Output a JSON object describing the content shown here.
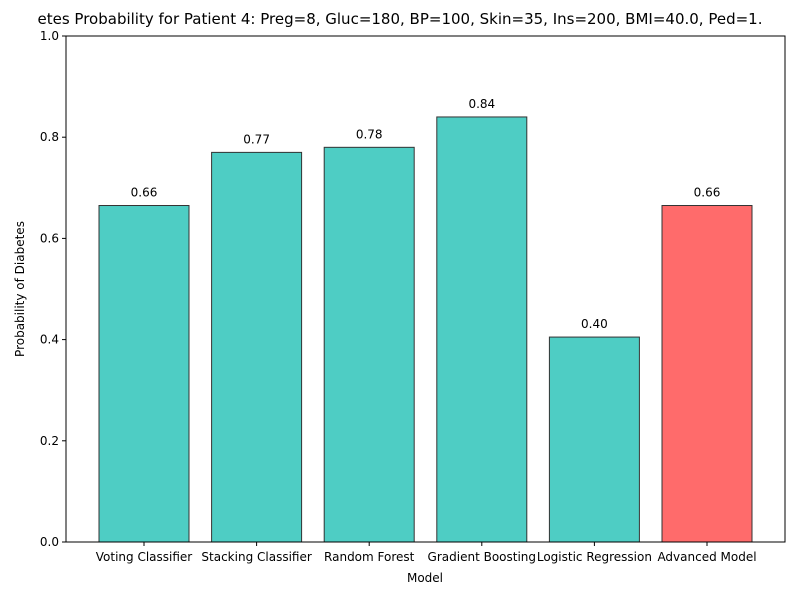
{
  "chart_data": {
    "type": "bar",
    "title": "etes Probability for Patient 4: Preg=8, Gluc=180, BP=100, Skin=35, Ins=200, BMI=40.0, Ped=1.",
    "xlabel": "Model",
    "ylabel": "Probability of Diabetes",
    "ylim": [
      0,
      1
    ],
    "yticks": [
      "0.0",
      "0.2",
      "0.4",
      "0.6",
      "0.8",
      "1.0"
    ],
    "grid": false,
    "categories": [
      "Voting Classifier",
      "Stacking Classifier",
      "Random Forest",
      "Gradient Boosting",
      "Logistic Regression",
      "Advanced Model"
    ],
    "values": [
      0.665,
      0.77,
      0.78,
      0.84,
      0.405,
      0.665
    ],
    "value_labels": [
      "0.66",
      "0.77",
      "0.78",
      "0.84",
      "0.40",
      "0.66"
    ],
    "colors": [
      "#4ecdc4",
      "#4ecdc4",
      "#4ecdc4",
      "#4ecdc4",
      "#4ecdc4",
      "#ff6b6b"
    ],
    "edge_color": "#333333"
  }
}
